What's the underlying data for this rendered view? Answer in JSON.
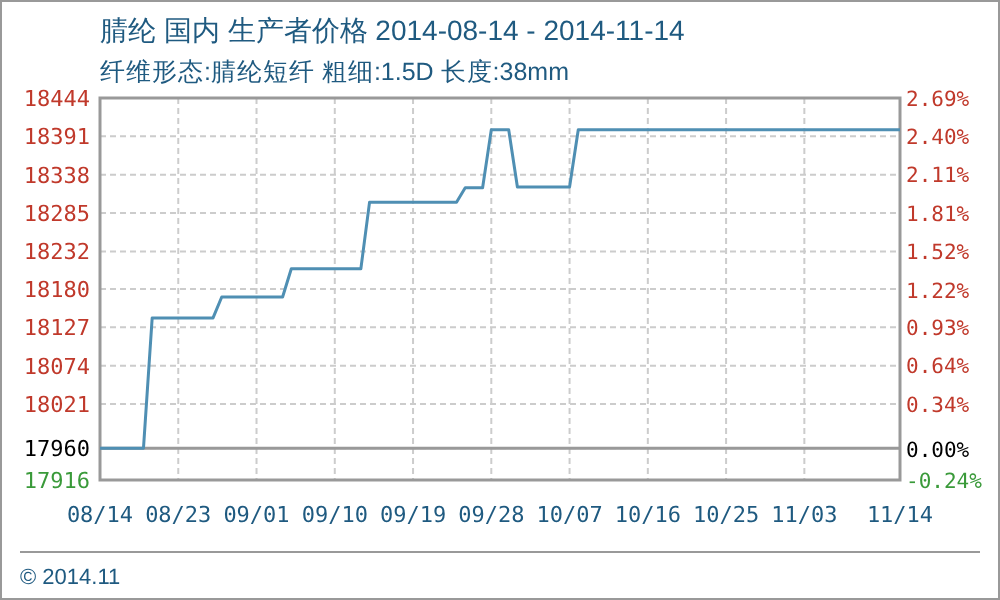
{
  "chart_data": {
    "type": "line",
    "title": "腈纶 国内 生产者价格 2014-08-14 - 2014-11-14",
    "subtitle": "纤维形态:腈纶短纤 粗细:1.5D 长度:38mm",
    "annotations": [
      "© 2014.11"
    ],
    "x": [
      "2014-08-14",
      "2014-08-19",
      "2014-08-20",
      "2014-08-27",
      "2014-08-28",
      "2014-09-04",
      "2014-09-05",
      "2014-09-13",
      "2014-09-14",
      "2014-09-24",
      "2014-09-25",
      "2014-09-27",
      "2014-09-28",
      "2014-09-30",
      "2014-10-01",
      "2014-10-07",
      "2014-10-08",
      "2014-11-14"
    ],
    "series": [
      {
        "color": "#4f8fb3",
        "values": [
          17960,
          17960,
          18140,
          18140,
          18169,
          18169,
          18208,
          18208,
          18300,
          18300,
          18320,
          18320,
          18400,
          18400,
          18321,
          18321,
          18400,
          18400
        ]
      }
    ],
    "xlim": [
      "2014-08-14",
      "2014-11-14"
    ],
    "xticks": [
      {
        "value": "2014-08-14",
        "label": "08/14"
      },
      {
        "value": "2014-08-23",
        "label": "08/23"
      },
      {
        "value": "2014-09-01",
        "label": "09/01"
      },
      {
        "value": "2014-09-10",
        "label": "09/10"
      },
      {
        "value": "2014-09-19",
        "label": "09/19"
      },
      {
        "value": "2014-09-28",
        "label": "09/28"
      },
      {
        "value": "2014-10-07",
        "label": "10/07"
      },
      {
        "value": "2014-10-16",
        "label": "10/16"
      },
      {
        "value": "2014-10-25",
        "label": "10/25"
      },
      {
        "value": "2014-11-03",
        "label": "11/03"
      },
      {
        "value": "2014-11-14",
        "label": "11/14"
      }
    ],
    "ylim": [
      17916,
      18444
    ],
    "yticks": [
      17916,
      17960,
      18021,
      18074,
      18127,
      18180,
      18232,
      18285,
      18338,
      18391,
      18444
    ],
    "y2lim": [
      -0.24,
      2.69
    ],
    "y2ticks": [
      {
        "value": -0.24,
        "label": "-0.24%"
      },
      {
        "value": 0,
        "label": "0.00%"
      },
      {
        "value": 0.34,
        "label": "0.34%"
      },
      {
        "value": 0.64,
        "label": "0.64%"
      },
      {
        "value": 0.93,
        "label": "0.93%"
      },
      {
        "value": 1.22,
        "label": "1.22%"
      },
      {
        "value": 1.52,
        "label": "1.52%"
      },
      {
        "value": 1.81,
        "label": "1.81%"
      },
      {
        "value": 2.11,
        "label": "2.11%"
      },
      {
        "value": 2.4,
        "label": "2.40%"
      },
      {
        "value": 2.69,
        "label": "2.69%"
      }
    ],
    "ref_lines": [
      {
        "axis": "y",
        "value": 17960,
        "color": "#999999"
      }
    ],
    "grid": true,
    "marker": "none",
    "line_style": "solid"
  }
}
